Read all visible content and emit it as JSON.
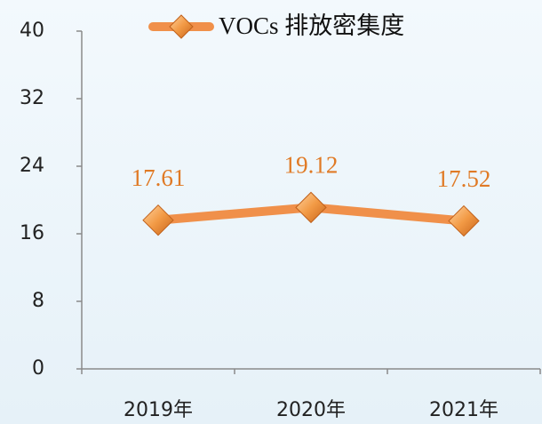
{
  "chart_data": {
    "type": "line",
    "categories": [
      "2019年",
      "2020年",
      "2021年"
    ],
    "series": [
      {
        "name": "VOCs 排放密集度",
        "color": "#f0904a",
        "values": [
          17.61,
          19.12,
          17.52
        ]
      }
    ],
    "ylim": [
      0,
      40
    ],
    "yticks": [
      0,
      8,
      16,
      24,
      32,
      40
    ]
  }
}
